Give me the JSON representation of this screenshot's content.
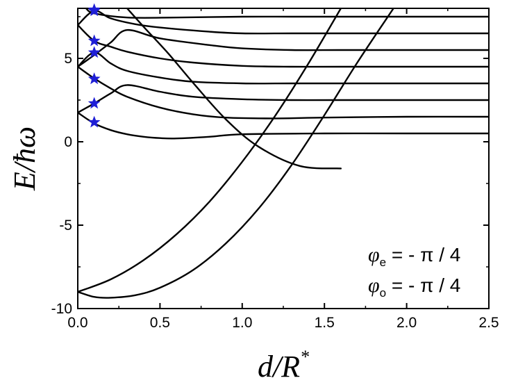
{
  "chart_data": {
    "type": "line",
    "title": "",
    "xlabel": {
      "main": "d/R",
      "superscript": "*"
    },
    "ylabel": {
      "main": "E/",
      "hbar": "ħ",
      "omega": "ω"
    },
    "xlim": [
      0.0,
      2.5
    ],
    "ylim": [
      -10,
      8
    ],
    "xticks": [
      "0.0",
      "0.5",
      "1.0",
      "1.5",
      "2.0",
      "2.5"
    ],
    "yticks": [
      "-10",
      "-5",
      "0",
      "5"
    ],
    "ytick_values": [
      -10,
      -5,
      0,
      5
    ],
    "xtick_values": [
      0.0,
      0.5,
      1.0,
      1.5,
      2.0,
      2.5
    ],
    "grid": false,
    "line_color": "#000000",
    "marker_color": "#1f1fd6",
    "annotations": [
      {
        "symbol": "φ",
        "sub": "e",
        "text": " = - π / 4"
      },
      {
        "symbol": "φ",
        "sub": "o",
        "text": " = - π / 4"
      }
    ],
    "star_markers": {
      "x": [
        0.1,
        0.1,
        0.1,
        0.1,
        0.1,
        0.1,
        0.1
      ],
      "y": [
        1.17,
        2.3,
        3.77,
        5.35,
        6.05,
        7.85,
        8.0
      ]
    },
    "series": [
      {
        "x": [
          0,
          0.1,
          0.2,
          0.3,
          0.4,
          0.5,
          0.6,
          0.8,
          1.0,
          1.5,
          2.0,
          2.5
        ],
        "y": [
          1.75,
          1.1,
          0.7,
          0.45,
          0.3,
          0.22,
          0.2,
          0.3,
          0.45,
          0.5,
          0.5,
          0.5
        ]
      },
      {
        "x": [
          0,
          0.1,
          0.2,
          0.3,
          0.5,
          0.7,
          0.9,
          1.2,
          1.5,
          2.0,
          2.5
        ],
        "y": [
          4.5,
          3.8,
          3.2,
          2.7,
          2.05,
          1.65,
          1.45,
          1.4,
          1.45,
          1.5,
          1.5
        ]
      },
      {
        "x": [
          0,
          0.1,
          0.2,
          0.3,
          0.5,
          0.7,
          1.0,
          1.3,
          1.6,
          2.0,
          2.5
        ],
        "y": [
          1.75,
          2.3,
          2.9,
          3.4,
          3.0,
          2.7,
          2.55,
          2.5,
          2.5,
          2.5,
          2.5
        ]
      },
      {
        "x": [
          0,
          0.1,
          0.2,
          0.3,
          0.5,
          0.7,
          1.0,
          1.3,
          1.6,
          2.0,
          2.5
        ],
        "y": [
          4.5,
          5.35,
          4.7,
          4.25,
          3.85,
          3.6,
          3.5,
          3.5,
          3.5,
          3.5,
          3.5
        ]
      },
      {
        "x": [
          0,
          0.1,
          0.2,
          0.3,
          0.5,
          0.7,
          1.0,
          1.3,
          1.6,
          2.0,
          2.5
        ],
        "y": [
          7.0,
          6.05,
          5.7,
          5.4,
          5.0,
          4.75,
          4.55,
          4.5,
          4.5,
          4.5,
          4.5
        ]
      },
      {
        "x": [
          0,
          0.1,
          0.2,
          0.3,
          0.5,
          0.8,
          1.0,
          1.3,
          1.6,
          2.0,
          2.5
        ],
        "y": [
          4.5,
          5.2,
          5.95,
          6.7,
          6.2,
          5.8,
          5.6,
          5.5,
          5.5,
          5.5,
          5.5
        ]
      },
      {
        "x": [
          0,
          0.1,
          0.2,
          0.35,
          0.5,
          0.8,
          1.0,
          1.3,
          1.6,
          2.0,
          2.5
        ],
        "y": [
          7.0,
          7.85,
          7.4,
          7.05,
          6.85,
          6.6,
          6.5,
          6.5,
          6.5,
          6.5,
          6.5
        ]
      },
      {
        "x": [
          0.05,
          0.1,
          0.3,
          0.6,
          1.0,
          1.3,
          1.6,
          2.0,
          2.5
        ],
        "y": [
          8.0,
          7.7,
          7.45,
          7.45,
          7.5,
          7.5,
          7.5,
          7.5,
          7.5
        ]
      },
      {
        "x": [
          0.0,
          0.2,
          0.4,
          0.6,
          0.8,
          1.0,
          1.2,
          1.4,
          1.6
        ],
        "y": [
          -9.0,
          -8.25,
          -7.1,
          -5.55,
          -3.6,
          -1.2,
          1.55,
          4.65,
          8.0
        ]
      },
      {
        "x": [
          0.0,
          0.1,
          0.2,
          0.35,
          0.5,
          0.7,
          0.9,
          1.1,
          1.3,
          1.5,
          1.7,
          1.92
        ],
        "y": [
          -9.0,
          -9.3,
          -9.35,
          -9.2,
          -8.75,
          -7.7,
          -6.1,
          -4.0,
          -1.4,
          1.6,
          4.75,
          8.0
        ]
      },
      {
        "x": [
          0.3,
          0.4,
          0.55,
          0.7,
          0.9,
          1.1,
          1.35,
          1.6
        ],
        "y": [
          8.0,
          6.9,
          5.3,
          3.55,
          1.35,
          -0.3,
          -1.45,
          -1.6
        ]
      }
    ]
  }
}
